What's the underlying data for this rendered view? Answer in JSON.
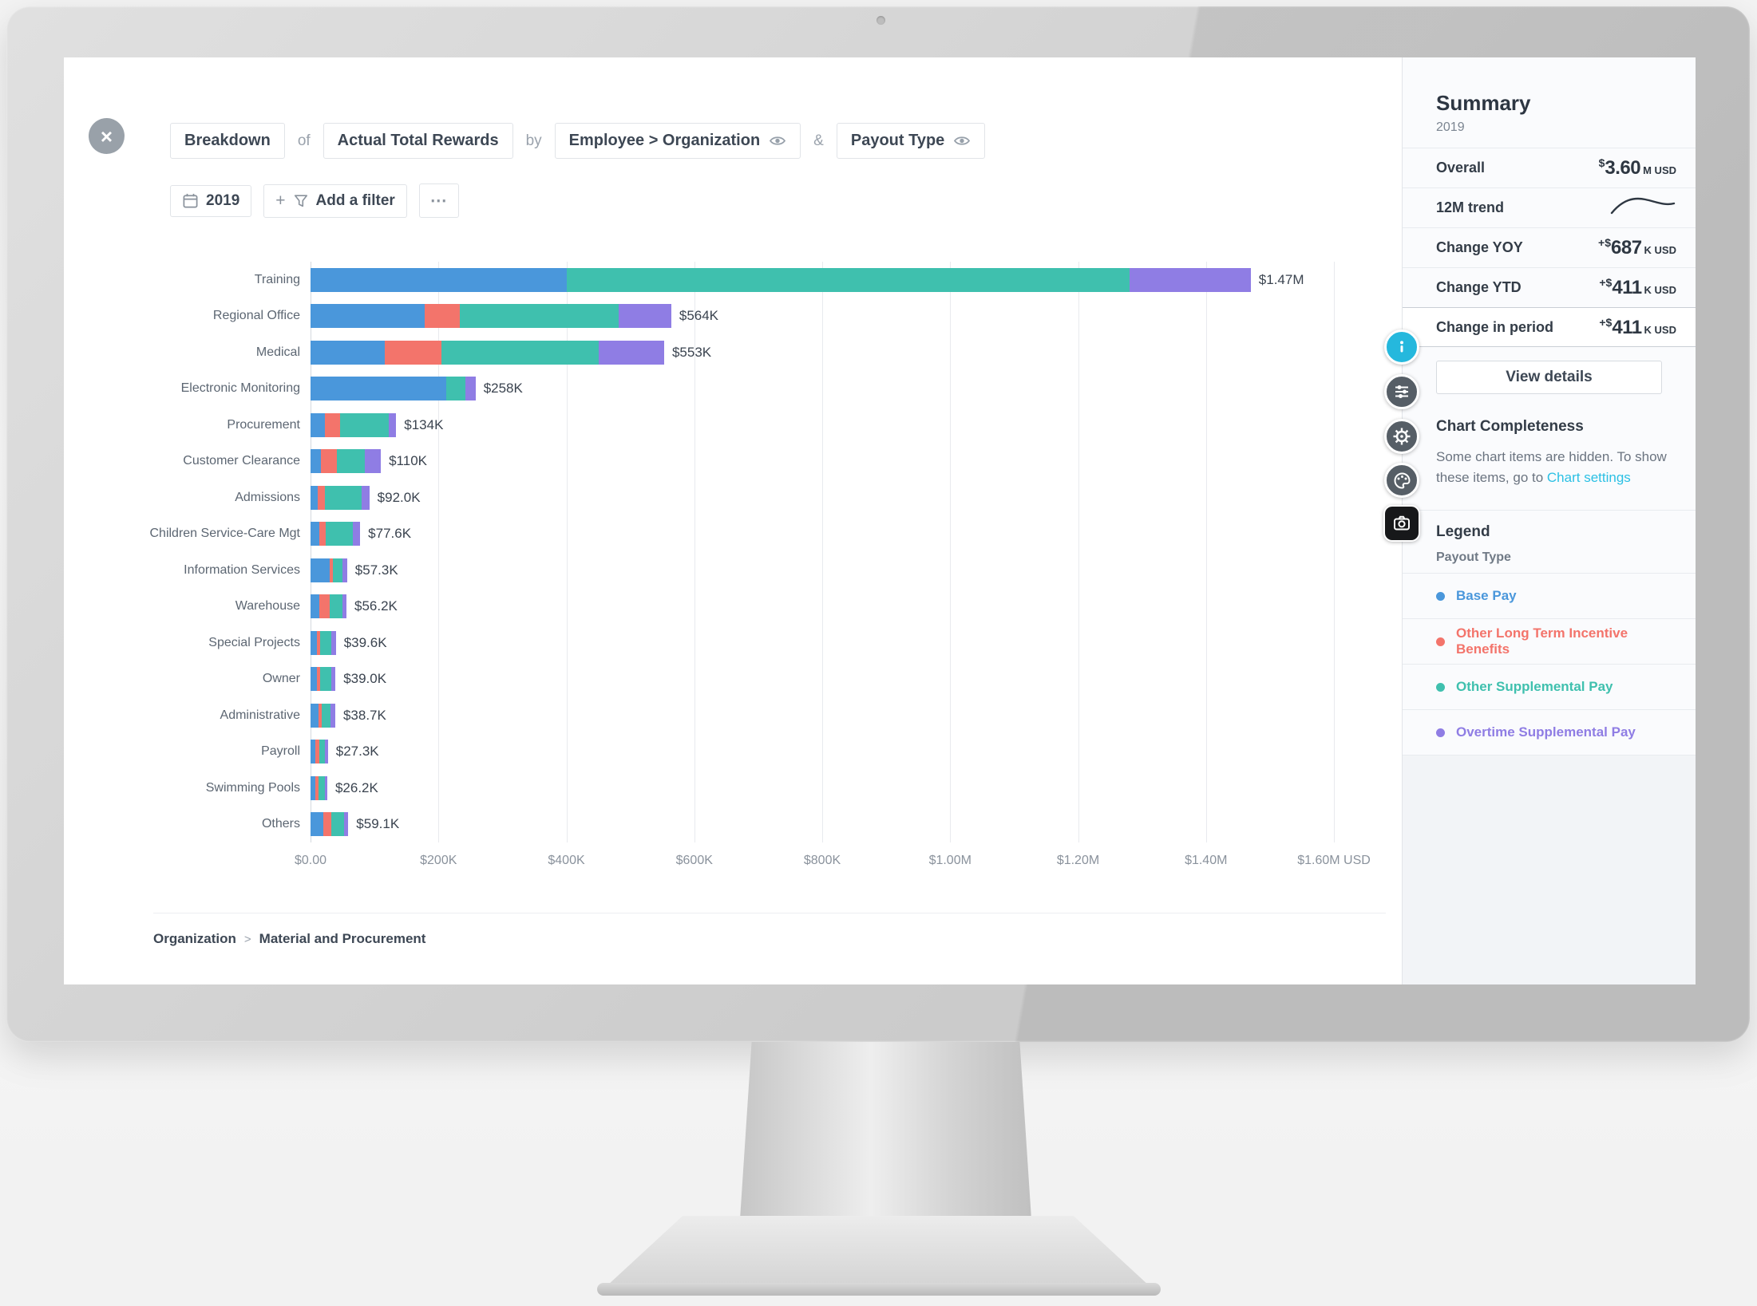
{
  "window": {
    "close_label": "×"
  },
  "header": {
    "tokens": {
      "breakdown": "Breakdown",
      "of": "of",
      "metric": "Actual Total Rewards",
      "by": "by",
      "dimension": "Employee > Organization",
      "amp": "&",
      "dimension2": "Payout Type"
    }
  },
  "filters": {
    "year": "2019",
    "plus": "+",
    "add_filter": "Add a filter",
    "more": "⋯"
  },
  "chart_data": {
    "type": "bar",
    "orientation": "horizontal",
    "stacked": true,
    "title": "Breakdown of Actual Total Rewards by Employee > Organization & Payout Type",
    "value_unit": "K USD",
    "xlim": [
      0,
      1600
    ],
    "grid": true,
    "legend_position": "right-panel",
    "categories": [
      "Training",
      "Regional Office",
      "Medical",
      "Electronic Monitoring",
      "Procurement",
      "Customer Clearance",
      "Admissions",
      "Children Service-Care Mgt",
      "Information Services",
      "Warehouse",
      "Special Projects",
      "Owner",
      "Administrative",
      "Payroll",
      "Swimming Pools",
      "Others"
    ],
    "series": [
      {
        "name": "Base Pay",
        "color": "#4a97db",
        "values": [
          400,
          178,
          116,
          212,
          23,
          16,
          11,
          14,
          30,
          14,
          10,
          10,
          12,
          8,
          7,
          20
        ]
      },
      {
        "name": "Other Long Term Incentive Benefits",
        "color": "#f3746b",
        "values": [
          0,
          56,
          89,
          0,
          23,
          25,
          12,
          10,
          5,
          16,
          5,
          5,
          5,
          6,
          6,
          12
        ]
      },
      {
        "name": "Other Supplemental Pay",
        "color": "#3fc0ae",
        "values": [
          880,
          248,
          246,
          30,
          76,
          44,
          57,
          42,
          15,
          20,
          18,
          18,
          14,
          9,
          9,
          20
        ]
      },
      {
        "name": "Overtime Supplemental Pay",
        "color": "#8f7de4",
        "values": [
          190,
          82,
          102,
          16,
          12,
          25,
          12,
          11.6,
          7.3,
          6.2,
          6.6,
          6,
          7.7,
          4.3,
          4.2,
          7.1
        ]
      }
    ],
    "totals_labels": [
      "$1.47M",
      "$564K",
      "$553K",
      "$258K",
      "$134K",
      "$110K",
      "$92.0K",
      "$77.6K",
      "$57.3K",
      "$56.2K",
      "$39.6K",
      "$39.0K",
      "$38.7K",
      "$27.3K",
      "$26.2K",
      "$59.1K"
    ],
    "x_ticks": [
      "$0.00",
      "$200K",
      "$400K",
      "$600K",
      "$800K",
      "$1.00M",
      "$1.20M",
      "$1.40M",
      "$1.60M USD"
    ]
  },
  "footer": {
    "breadcrumb": [
      {
        "label": "Organization"
      },
      {
        "label": "Material and Procurement"
      }
    ],
    "separator": ">"
  },
  "summary": {
    "title": "Summary",
    "subtitle": "2019",
    "rows": [
      {
        "label": "Overall",
        "type": "value",
        "prefix": "$",
        "value": "3.60",
        "unit": "M",
        "currency": "USD"
      },
      {
        "label": "12M trend",
        "type": "sparkline"
      },
      {
        "label": "Change YOY",
        "type": "value",
        "prefix": "+$",
        "value": "687",
        "unit": "K",
        "currency": "USD"
      },
      {
        "label": "Change YTD",
        "type": "value",
        "prefix": "+$",
        "value": "411",
        "unit": "K",
        "currency": "USD"
      },
      {
        "label": "Change in period",
        "type": "value",
        "prefix": "+$",
        "value": "411",
        "unit": "K",
        "currency": "USD",
        "highlight": true
      }
    ],
    "view_details": "View details"
  },
  "completeness": {
    "title": "Chart Completeness",
    "message": "Some chart items are hidden. To show these items, go to ",
    "link": "Chart settings"
  },
  "legend": {
    "title": "Legend",
    "group": "Payout Type",
    "items": [
      {
        "label": "Base Pay",
        "color": "#4a97db"
      },
      {
        "label": "Other Long Term Incentive Benefits",
        "color": "#f3746b"
      },
      {
        "label": "Other Supplemental Pay",
        "color": "#3fc0ae"
      },
      {
        "label": "Overtime Supplemental Pay",
        "color": "#8f7de4"
      }
    ]
  }
}
